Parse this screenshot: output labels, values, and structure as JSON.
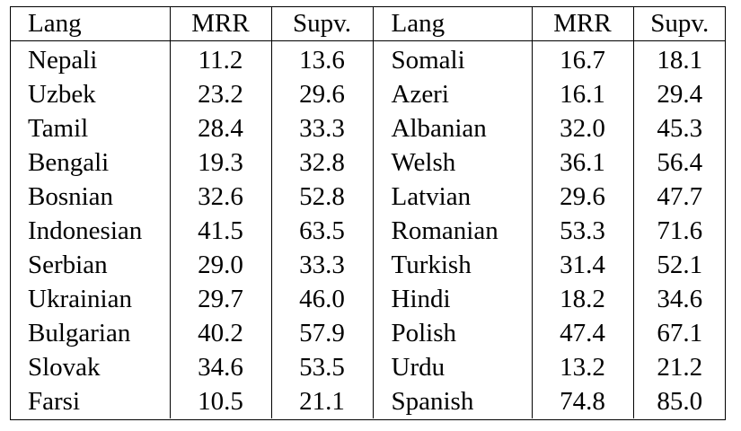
{
  "table": {
    "headers": [
      "Lang",
      "MRR",
      "Supv.",
      "Lang",
      "MRR",
      "Supv."
    ],
    "rows": [
      [
        "Nepali",
        "11.2",
        "13.6",
        "Somali",
        "16.7",
        "18.1"
      ],
      [
        "Uzbek",
        "23.2",
        "29.6",
        "Azeri",
        "16.1",
        "29.4"
      ],
      [
        "Tamil",
        "28.4",
        "33.3",
        "Albanian",
        "32.0",
        "45.3"
      ],
      [
        "Bengali",
        "19.3",
        "32.8",
        "Welsh",
        "36.1",
        "56.4"
      ],
      [
        "Bosnian",
        "32.6",
        "52.8",
        "Latvian",
        "29.6",
        "47.7"
      ],
      [
        "Indonesian",
        "41.5",
        "63.5",
        "Romanian",
        "53.3",
        "71.6"
      ],
      [
        "Serbian",
        "29.0",
        "33.3",
        "Turkish",
        "31.4",
        "52.1"
      ],
      [
        "Ukrainian",
        "29.7",
        "46.0",
        "Hindi",
        "18.2",
        "34.6"
      ],
      [
        "Bulgarian",
        "40.2",
        "57.9",
        "Polish",
        "47.4",
        "67.1"
      ],
      [
        "Slovak",
        "34.6",
        "53.5",
        "Urdu",
        "13.2",
        "21.2"
      ],
      [
        "Farsi",
        "10.5",
        "21.1",
        "Spanish",
        "74.8",
        "85.0"
      ]
    ]
  }
}
